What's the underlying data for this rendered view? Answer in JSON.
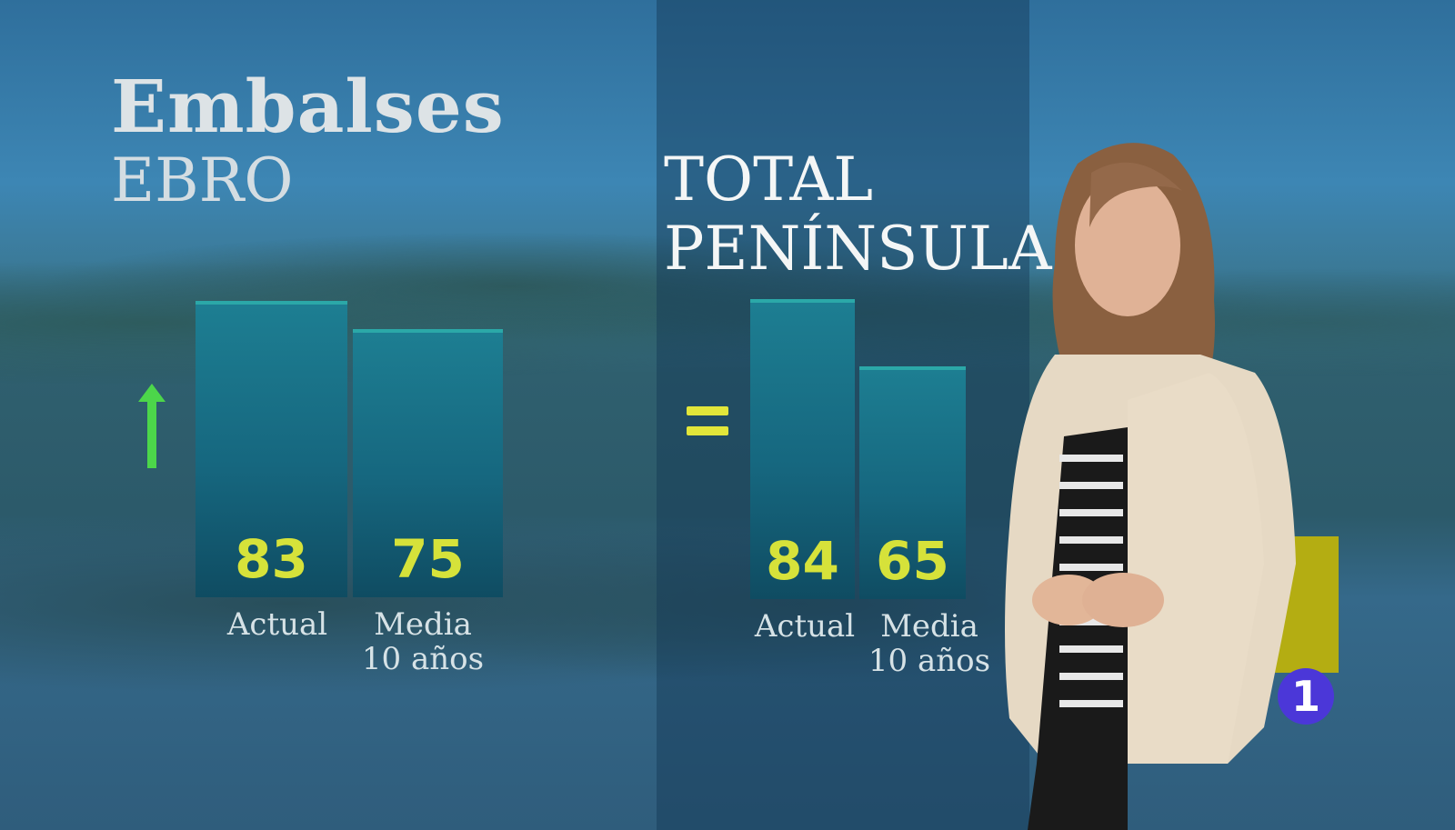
{
  "chart_data": [
    {
      "type": "bar",
      "title": "Embalses",
      "subtitle": "EBRO",
      "categories": [
        "Actual",
        "Media 10 años"
      ],
      "values": [
        83,
        75
      ],
      "trend": "up-arrow",
      "ylim": [
        0,
        100
      ]
    },
    {
      "type": "bar",
      "title": "TOTAL PENÍNSULA",
      "categories": [
        "Actual",
        "Media 10 años"
      ],
      "values": [
        84,
        65
      ],
      "trend": "equal",
      "ylim": [
        0,
        100
      ]
    }
  ],
  "labels": {
    "title": "Embalses",
    "ebro": "EBRO",
    "total_line1": "TOTAL",
    "total_line2": "PENÍNSULA",
    "actual": "Actual",
    "media_line1": "Media",
    "media_line2": "10 años"
  },
  "colors": {
    "value_text": "#d6e23a",
    "arrow": "#4cd64a",
    "bar": "#1d7e92",
    "logo": "#4b37d8"
  },
  "logo": {
    "text": "1"
  }
}
